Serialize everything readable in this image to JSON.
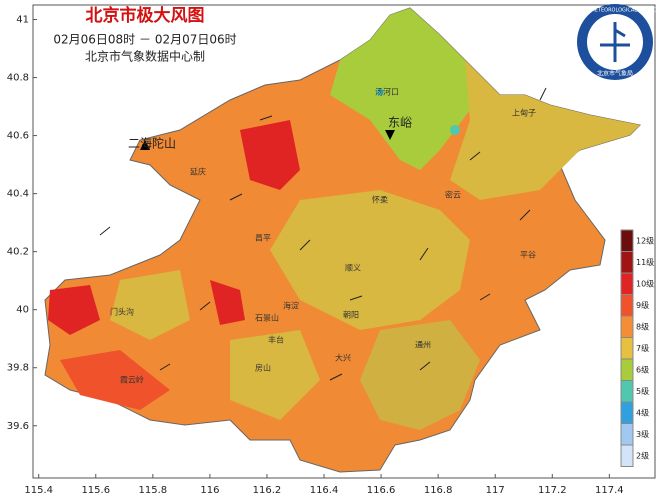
{
  "header": {
    "title": "北京市极大风图",
    "period": "02月06日08时 － 02月07日06时",
    "credit": "北京市气象数据中心制"
  },
  "axes": {
    "xlim": [
      115.38,
      117.56
    ],
    "ylim": [
      39.42,
      41.05
    ],
    "xticks": [
      115.4,
      115.6,
      115.8,
      116,
      116.2,
      116.4,
      116.6,
      116.8,
      117,
      117.2,
      117.4
    ],
    "yticks": [
      39.6,
      39.8,
      40,
      40.2,
      40.4,
      40.6,
      40.8,
      41
    ]
  },
  "legend": [
    {
      "label": "12级",
      "color": "#6b0e0e"
    },
    {
      "label": "11级",
      "color": "#a01414"
    },
    {
      "label": "10级",
      "color": "#e02424"
    },
    {
      "label": "9级",
      "color": "#f0522c"
    },
    {
      "label": "8级",
      "color": "#f58c36"
    },
    {
      "label": "7级",
      "color": "#e6c040"
    },
    {
      "label": "6级",
      "color": "#a8cc3c"
    },
    {
      "label": "5级",
      "color": "#50c8b0"
    },
    {
      "label": "4级",
      "color": "#30a0e0"
    },
    {
      "label": "3级",
      "color": "#a0c8f0"
    },
    {
      "label": "2级",
      "color": "#d4e4f8"
    }
  ],
  "places": {
    "peak1": "二海陀山",
    "peak2": "东峪",
    "p1": "汤河口",
    "p2": "上甸子",
    "p3": "延庆",
    "p4": "怀柔",
    "p5": "密云",
    "p6": "平谷",
    "p7": "顺义",
    "p8": "昌平",
    "p9": "海淀",
    "p10": "朝阳",
    "p11": "石景山",
    "p12": "丰台",
    "p13": "房山",
    "p14": "门头沟",
    "p15": "霞云岭",
    "p16": "通州",
    "p17": "大兴"
  },
  "logo": {
    "english": "BEIJING METEOROLOGICAL SERVICE",
    "chinese": "北京市气象局"
  }
}
